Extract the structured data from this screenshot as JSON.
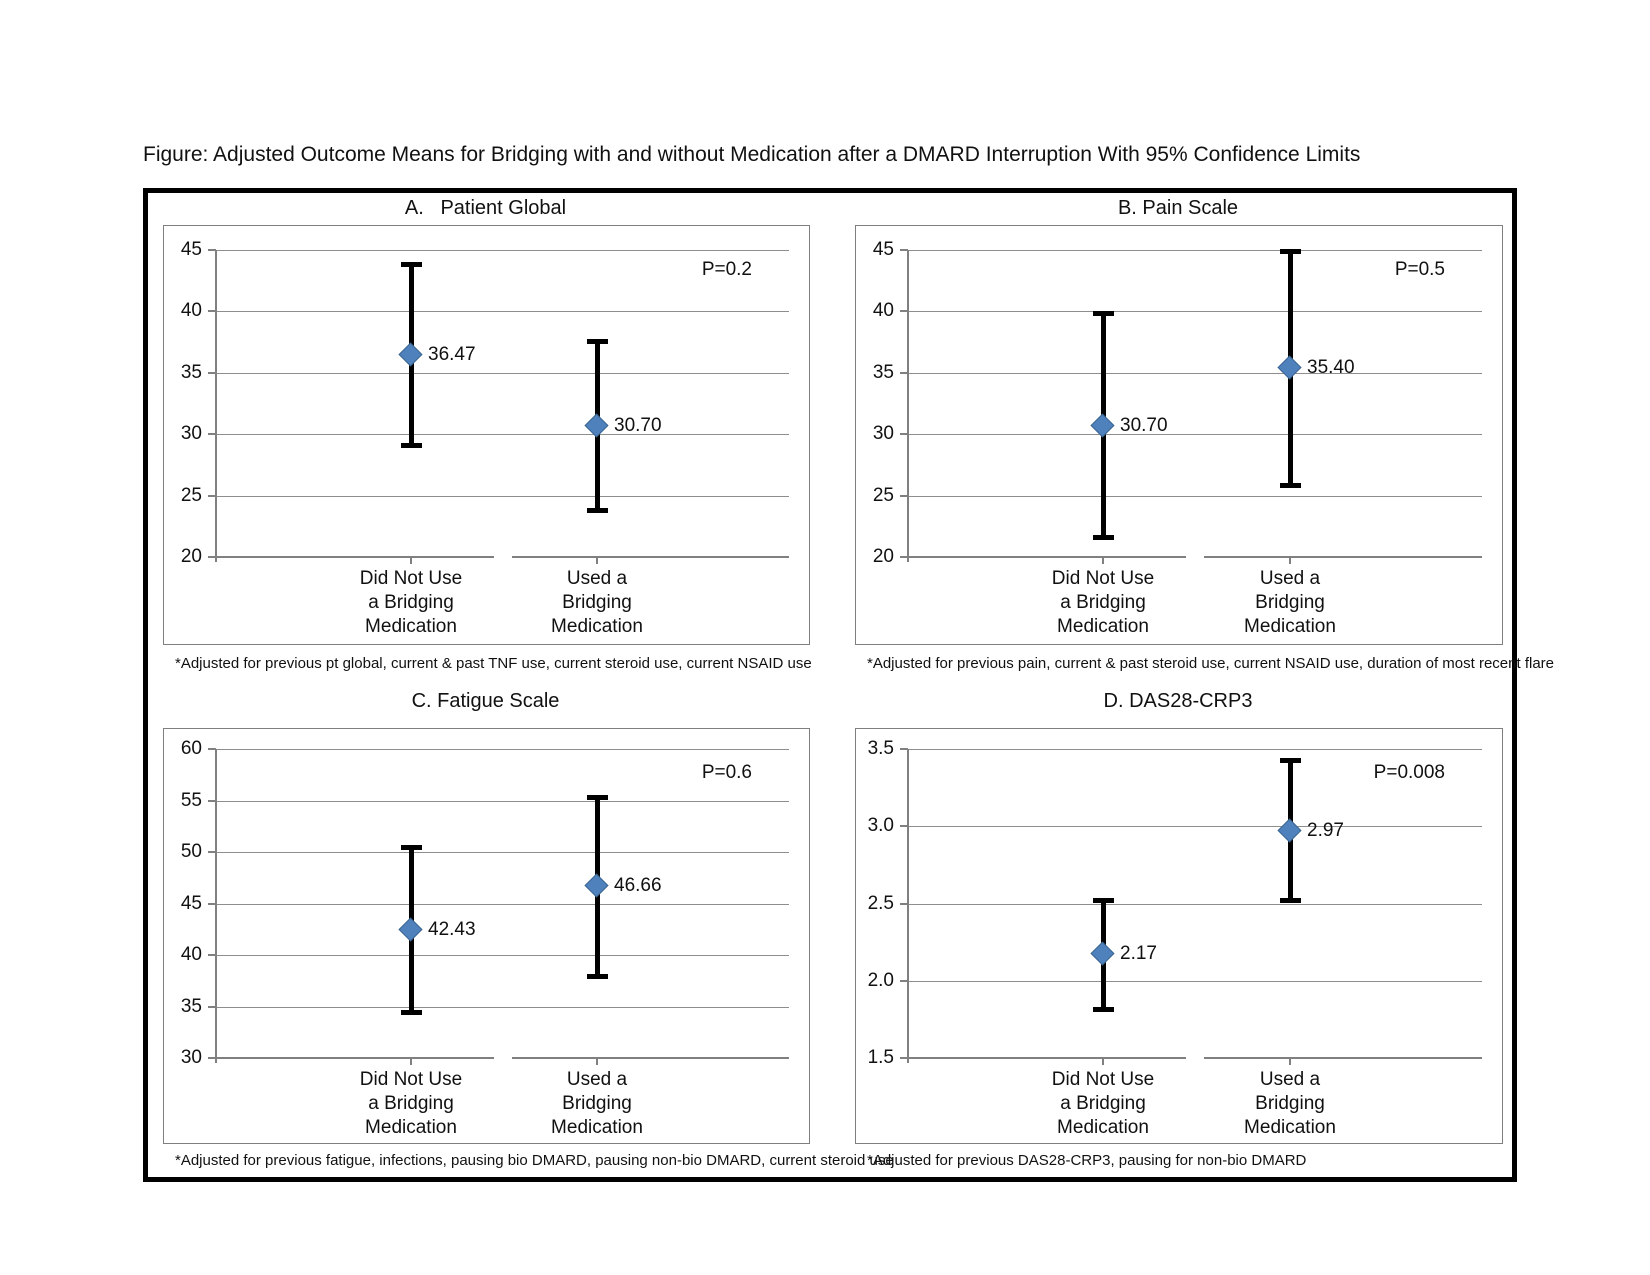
{
  "figure_title": "Figure: Adjusted Outcome Means for Bridging with and without Medication after a DMARD Interruption With 95% Confidence Limits",
  "colors": {
    "marker": "#4F81BD",
    "error_bar": "#000000",
    "gridline": "#8e8e8e",
    "axis": "#808080"
  },
  "chart_data": [
    {
      "panel": "A",
      "type": "scatter",
      "title": "A.   Patient Global",
      "p_label": "P=0.2",
      "ylim": [
        20,
        45
      ],
      "ytick_values": [
        20,
        25,
        30,
        35,
        40,
        45
      ],
      "ytick_labels": [
        "20",
        "25",
        "30",
        "35",
        "40",
        "45"
      ],
      "grid": true,
      "legend": "none",
      "categories": [
        {
          "lines": [
            "Did Not Use",
            "a Bridging",
            "Medication"
          ]
        },
        {
          "lines": [
            "Used a",
            "Bridging",
            "Medication"
          ]
        }
      ],
      "points": [
        {
          "mean": 36.47,
          "label": "36.47",
          "ci_low": 29.1,
          "ci_high": 43.9
        },
        {
          "mean": 30.7,
          "label": "30.70",
          "ci_low": 23.8,
          "ci_high": 37.6
        }
      ],
      "footnote": "*Adjusted for previous pt global, current & past TNF use, current steroid use, current NSAID use"
    },
    {
      "panel": "B",
      "type": "scatter",
      "title": "B. Pain Scale",
      "p_label": "P=0.5",
      "ylim": [
        20,
        45
      ],
      "ytick_values": [
        20,
        25,
        30,
        35,
        40,
        45
      ],
      "ytick_labels": [
        "20",
        "25",
        "30",
        "35",
        "40",
        "45"
      ],
      "grid": true,
      "legend": "none",
      "categories": [
        {
          "lines": [
            "Did Not Use",
            "a Bridging",
            "Medication"
          ]
        },
        {
          "lines": [
            "Used a",
            "Bridging",
            "Medication"
          ]
        }
      ],
      "points": [
        {
          "mean": 30.7,
          "label": "30.70",
          "ci_low": 21.6,
          "ci_high": 39.9
        },
        {
          "mean": 35.4,
          "label": "35.40",
          "ci_low": 25.9,
          "ci_high": 44.9
        }
      ],
      "footnote": "*Adjusted for previous pain, current & past steroid use, current NSAID use, duration of most recent flare"
    },
    {
      "panel": "C",
      "type": "scatter",
      "title": "C. Fatigue Scale",
      "p_label": "P=0.6",
      "ylim": [
        30,
        60
      ],
      "ytick_values": [
        30,
        35,
        40,
        45,
        50,
        55,
        60
      ],
      "ytick_labels": [
        "30",
        "35",
        "40",
        "45",
        "50",
        "55",
        "60"
      ],
      "grid": true,
      "legend": "none",
      "categories": [
        {
          "lines": [
            "Did Not Use",
            "a Bridging",
            "Medication"
          ]
        },
        {
          "lines": [
            "Used a",
            "Bridging",
            "Medication"
          ]
        }
      ],
      "points": [
        {
          "mean": 42.43,
          "label": "42.43",
          "ci_low": 34.5,
          "ci_high": 50.5
        },
        {
          "mean": 46.66,
          "label": "46.66",
          "ci_low": 38.0,
          "ci_high": 55.3
        }
      ],
      "footnote": "*Adjusted for previous fatigue, infections, pausing bio DMARD, pausing non-bio DMARD, current steroid use"
    },
    {
      "panel": "D",
      "type": "scatter",
      "title": "D. DAS28-CRP3",
      "p_label": "P=0.008",
      "ylim": [
        1.5,
        3.5
      ],
      "ytick_values": [
        1.5,
        2.0,
        2.5,
        3.0,
        3.5
      ],
      "ytick_labels": [
        "1.5",
        "2.0",
        "2.5",
        "3.0",
        "3.5"
      ],
      "grid": true,
      "legend": "none",
      "categories": [
        {
          "lines": [
            "Did Not Use",
            "a Bridging",
            "Medication"
          ]
        },
        {
          "lines": [
            "Used a",
            "Bridging",
            "Medication"
          ]
        }
      ],
      "points": [
        {
          "mean": 2.17,
          "label": "2.17",
          "ci_low": 1.82,
          "ci_high": 2.52
        },
        {
          "mean": 2.97,
          "label": "2.97",
          "ci_low": 2.52,
          "ci_high": 3.43
        }
      ],
      "footnote": "*Adjusted for previous DAS28-CRP3, pausing for non-bio DMARD"
    }
  ]
}
